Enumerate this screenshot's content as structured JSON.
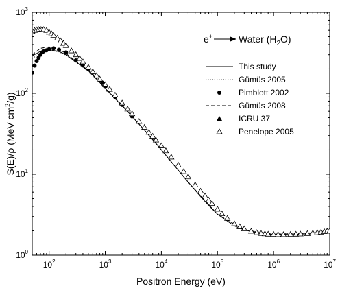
{
  "chart_data": {
    "type": "scatter",
    "xlabel": "Positron Energy (eV)",
    "ylabel_parts": [
      "S(E)/",
      "ρ",
      " (MeV cm",
      "2",
      "/g)"
    ],
    "x_scale": "log",
    "y_scale": "log",
    "xlim": [
      50,
      10000000
    ],
    "ylim": [
      1,
      1000
    ],
    "x_ticks": [
      {
        "value": 100,
        "base": "10",
        "exp": "2"
      },
      {
        "value": 1000,
        "base": "10",
        "exp": "3"
      },
      {
        "value": 10000,
        "base": "10",
        "exp": "4"
      },
      {
        "value": 100000,
        "base": "10",
        "exp": "5"
      },
      {
        "value": 1000000,
        "base": "10",
        "exp": "6"
      },
      {
        "value": 10000000,
        "base": "10",
        "exp": "7"
      }
    ],
    "y_ticks": [
      {
        "value": 1,
        "base": "10",
        "exp": "0"
      },
      {
        "value": 10,
        "base": "10",
        "exp": "1"
      },
      {
        "value": 100,
        "base": "10",
        "exp": "2"
      },
      {
        "value": 1000,
        "base": "10",
        "exp": "3"
      }
    ],
    "annotation": {
      "particle": "e",
      "particle_sup": "+",
      "target_pre": "Water (H",
      "target_sub": "2",
      "target_post": "O)"
    },
    "series": [
      {
        "name": "This study",
        "style": "line",
        "dash": "solid",
        "points": [
          [
            50,
            290
          ],
          [
            70,
            330
          ],
          [
            100,
            345
          ],
          [
            150,
            330
          ],
          [
            200,
            300
          ],
          [
            300,
            245
          ],
          [
            500,
            190
          ],
          [
            700,
            150
          ],
          [
            1000,
            115
          ],
          [
            2000,
            70
          ],
          [
            3000,
            52
          ],
          [
            5000,
            35
          ],
          [
            7000,
            27
          ],
          [
            10000,
            20
          ],
          [
            20000,
            11.2
          ],
          [
            30000,
            8
          ],
          [
            50000,
            5.3
          ],
          [
            70000,
            4.1
          ],
          [
            100000,
            3.2
          ],
          [
            200000,
            2.3
          ],
          [
            300000,
            2.05
          ],
          [
            500000,
            1.9
          ],
          [
            700000,
            1.84
          ],
          [
            1000000,
            1.8
          ],
          [
            2000000,
            1.8
          ],
          [
            3000000,
            1.82
          ],
          [
            5000000,
            1.85
          ],
          [
            7000000,
            1.87
          ],
          [
            10000000,
            1.9
          ]
        ]
      },
      {
        "name": "Gümüs 2005",
        "style": "line",
        "dash": "dotted",
        "points": [
          [
            50,
            270
          ],
          [
            70,
            315
          ],
          [
            100,
            340
          ],
          [
            150,
            325
          ],
          [
            200,
            296
          ],
          [
            300,
            242
          ],
          [
            500,
            188
          ],
          [
            700,
            149
          ],
          [
            1000,
            114
          ],
          [
            2000,
            70
          ],
          [
            3000,
            52
          ],
          [
            5000,
            35
          ],
          [
            10000,
            20
          ],
          [
            30000,
            8
          ],
          [
            100000,
            3.2
          ],
          [
            300000,
            2.05
          ],
          [
            1000000,
            1.82
          ],
          [
            3000000,
            1.86
          ],
          [
            10000000,
            1.95
          ]
        ]
      },
      {
        "name": "Pimblott 2002",
        "style": "marker",
        "marker": "circle",
        "points": [
          [
            50,
            180
          ],
          [
            55,
            220
          ],
          [
            60,
            250
          ],
          [
            65,
            275
          ],
          [
            70,
            300
          ],
          [
            75,
            320
          ],
          [
            80,
            330
          ],
          [
            90,
            340
          ],
          [
            100,
            350
          ],
          [
            120,
            360
          ],
          [
            150,
            345
          ],
          [
            200,
            320
          ],
          [
            300,
            255
          ],
          [
            400,
            225
          ],
          [
            500,
            200
          ],
          [
            600,
            180
          ],
          [
            700,
            160
          ],
          [
            800,
            145
          ],
          [
            900,
            135
          ],
          [
            1000,
            120
          ],
          [
            1500,
            90
          ],
          [
            2000,
            72
          ],
          [
            3000,
            52
          ]
        ]
      },
      {
        "name": "Gümüs 2008",
        "style": "line",
        "dash": "dashed",
        "points": [
          [
            50,
            300
          ],
          [
            60,
            330
          ],
          [
            70,
            360
          ],
          [
            100,
            375
          ],
          [
            150,
            350
          ],
          [
            200,
            310
          ],
          [
            300,
            250
          ],
          [
            500,
            192
          ],
          [
            700,
            151
          ],
          [
            1000,
            116
          ],
          [
            2000,
            71
          ],
          [
            3000,
            52
          ],
          [
            5000,
            35
          ],
          [
            10000,
            20
          ],
          [
            30000,
            8
          ],
          [
            100000,
            3.2
          ],
          [
            300000,
            2.05
          ],
          [
            1000000,
            1.82
          ],
          [
            3000000,
            1.85
          ],
          [
            10000000,
            1.9
          ]
        ]
      },
      {
        "name": "ICRU 37",
        "style": "marker",
        "marker": "triangle-filled",
        "points": []
      },
      {
        "name": "Penelope 2005",
        "style": "marker",
        "marker": "triangle-open",
        "points": [
          [
            50,
            580
          ],
          [
            55,
            600
          ],
          [
            60,
            610
          ],
          [
            65,
            615
          ],
          [
            70,
            620
          ],
          [
            75,
            620
          ],
          [
            80,
            615
          ],
          [
            90,
            600
          ],
          [
            100,
            570
          ],
          [
            110,
            545
          ],
          [
            120,
            520
          ],
          [
            140,
            480
          ],
          [
            160,
            445
          ],
          [
            180,
            415
          ],
          [
            200,
            390
          ],
          [
            250,
            335
          ],
          [
            300,
            300
          ],
          [
            350,
            270
          ],
          [
            400,
            245
          ],
          [
            500,
            210
          ],
          [
            600,
            185
          ],
          [
            700,
            165
          ],
          [
            800,
            150
          ],
          [
            1000,
            128
          ],
          [
            1200,
            112
          ],
          [
            1500,
            95
          ],
          [
            2000,
            76
          ],
          [
            2500,
            64
          ],
          [
            3000,
            56
          ],
          [
            4000,
            45
          ],
          [
            5000,
            38
          ],
          [
            6000,
            33
          ],
          [
            7000,
            29.5
          ],
          [
            8000,
            26.5
          ],
          [
            10000,
            22.5
          ],
          [
            12000,
            19.5
          ],
          [
            15000,
            16.3
          ],
          [
            20000,
            13
          ],
          [
            25000,
            10.8
          ],
          [
            30000,
            9.3
          ],
          [
            40000,
            7.4
          ],
          [
            50000,
            6.2
          ],
          [
            60000,
            5.4
          ],
          [
            70000,
            4.8
          ],
          [
            80000,
            4.35
          ],
          [
            100000,
            3.7
          ],
          [
            120000,
            3.25
          ],
          [
            150000,
            2.85
          ],
          [
            200000,
            2.45
          ],
          [
            250000,
            2.25
          ],
          [
            300000,
            2.12
          ],
          [
            400000,
            1.98
          ],
          [
            500000,
            1.9
          ],
          [
            600000,
            1.86
          ],
          [
            700000,
            1.84
          ],
          [
            800000,
            1.82
          ],
          [
            1000000,
            1.81
          ],
          [
            1200000,
            1.8
          ],
          [
            1500000,
            1.8
          ],
          [
            2000000,
            1.81
          ],
          [
            2500000,
            1.82
          ],
          [
            3000000,
            1.83
          ],
          [
            4000000,
            1.85
          ],
          [
            5000000,
            1.88
          ],
          [
            6000000,
            1.9
          ],
          [
            7000000,
            1.93
          ],
          [
            8000000,
            1.96
          ],
          [
            9000000,
            1.98
          ],
          [
            10000000,
            2.0
          ]
        ]
      }
    ]
  }
}
